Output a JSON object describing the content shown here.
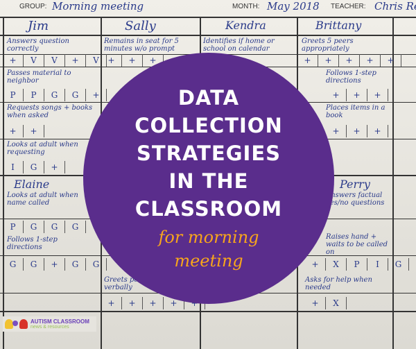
{
  "sheet": {
    "group_label": "GROUP:",
    "group_value": "Morning meeting",
    "month_label": "MONTH:",
    "month_value": "May 2018",
    "teacher_label": "TEACHER:",
    "teacher_value": "Chris Re",
    "students_top": [
      "Jim",
      "Sally",
      "Kendra",
      "Brittany"
    ],
    "goals": [
      {
        "text": "Answers question correctly",
        "marks": [
          "+",
          "V",
          "V",
          "+",
          "V"
        ]
      },
      {
        "text": "Remains in seat for 5 minutes w/o prompt",
        "marks": [
          "+",
          "+",
          "+"
        ]
      },
      {
        "text": "Identifies if home or school on calendar",
        "marks": []
      },
      {
        "text": "Greets 5 peers appropriately",
        "marks": [
          "+",
          "+",
          "+",
          "+",
          "+"
        ]
      },
      {
        "text": "Passes material to neighbor",
        "marks": [
          "P",
          "P",
          "G",
          "G",
          "+"
        ]
      },
      {
        "text": "Follows 1-step directions",
        "marks": [
          "+",
          "+",
          "+"
        ]
      },
      {
        "text": "Requests songs + books when asked",
        "marks": [
          "+",
          "+"
        ]
      },
      {
        "text": "Places items in a book",
        "marks": [
          "+",
          "+",
          "+"
        ]
      },
      {
        "text": "Looks at adult when requesting",
        "marks": [
          "I",
          "G",
          "+"
        ]
      }
    ],
    "students_bottom": [
      "Elaine",
      "Perry"
    ],
    "goals_bottom": [
      {
        "text": "Looks at adult when name called",
        "marks": [
          "P",
          "G",
          "G",
          "G",
          "G"
        ]
      },
      {
        "text": "Answers factual yes/no questions",
        "marks": []
      },
      {
        "text": "Follows 1-step directions",
        "marks": [
          "G",
          "G",
          "+",
          "G",
          "G"
        ]
      },
      {
        "text": "Raises hand + waits to be called on",
        "marks": [
          "+",
          "X",
          "P",
          "I",
          "G"
        ]
      },
      {
        "text": "Greets peers + adults verbally",
        "marks": [
          "+",
          "+",
          "+",
          "+",
          "+"
        ]
      },
      {
        "text": "Asks for help when needed",
        "marks": [
          "+",
          "X"
        ]
      }
    ]
  },
  "overlay": {
    "title_lines": [
      "DATA",
      "COLLECTION",
      "STRATEGIES",
      "IN THE",
      "CLASSROOM"
    ],
    "subtitle_lines": [
      "for morning",
      "meeting"
    ],
    "circle_color": "#5a2d8c",
    "subtitle_color": "#f7a51c"
  },
  "logo": {
    "name": "AUTISM CLASSROOM",
    "tagline": "news & resources"
  }
}
